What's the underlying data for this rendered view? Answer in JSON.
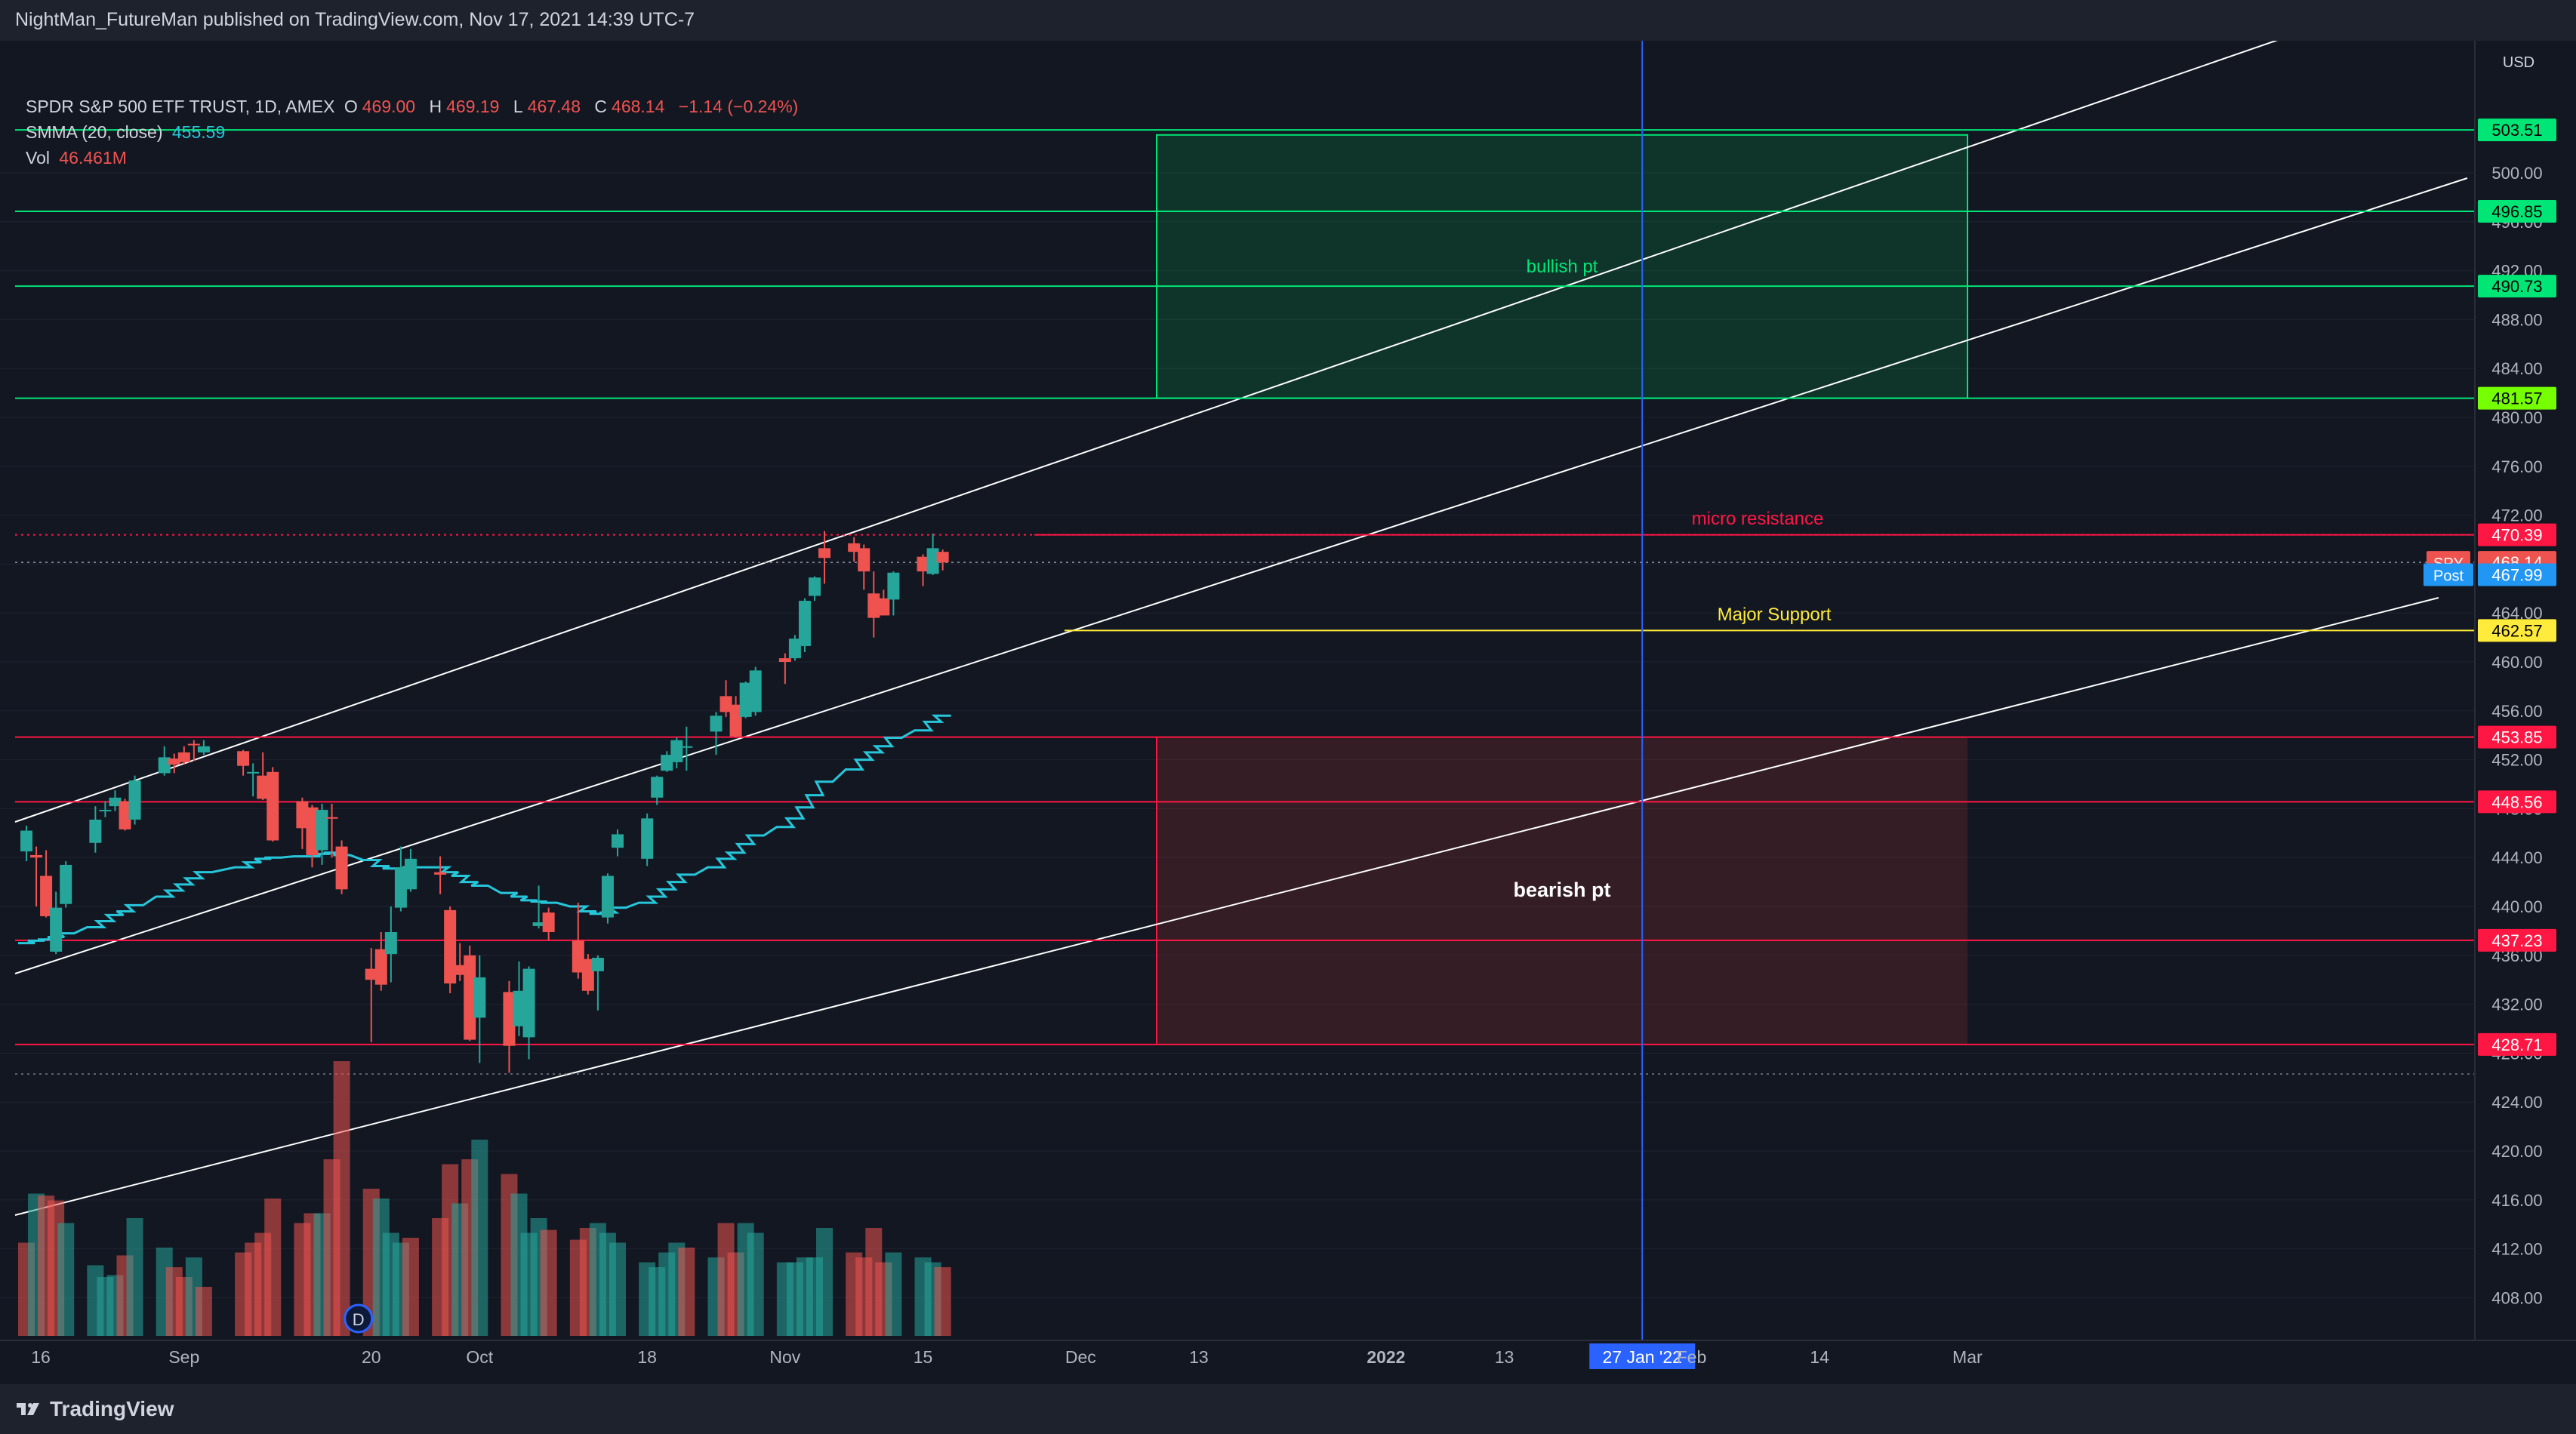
{
  "header": {
    "publish_text": "NightMan_FutureMan published on TradingView.com, Nov 17, 2021 14:39 UTC-7"
  },
  "legend": {
    "symbol": "SPDR S&P 500 ETF TRUST, 1D, AMEX",
    "open_label": "O",
    "open": "469.00",
    "high_label": "H",
    "high": "469.19",
    "low_label": "L",
    "low": "467.48",
    "close_label": "C",
    "close": "468.14",
    "change": "−1.14 (−0.24%)",
    "smma_label": "SMMA (20, close)",
    "smma_value": "455.59",
    "vol_label": "Vol",
    "vol_value": "46.461M"
  },
  "footer": {
    "brand": "TradingView"
  },
  "colors": {
    "background": "#131722",
    "up": "#26a69a",
    "down": "#ef5350",
    "smma": "#26c6da",
    "resistance_green": "#00e676",
    "support_yellow": "#ffeb3b",
    "level_red": "#ff1744",
    "channel": "#ffffff",
    "vline": "#2962ff"
  },
  "chart_data": {
    "type": "candlestick",
    "symbol": "SPY",
    "timeframe": "1D",
    "y_axis": {
      "currency": "USD",
      "ticks": [
        "500.00",
        "496.00",
        "492.00",
        "488.00",
        "484.00",
        "480.00",
        "476.00",
        "472.00",
        "468.00",
        "464.00",
        "460.00",
        "456.00",
        "452.00",
        "448.00",
        "444.00",
        "440.00",
        "436.00",
        "432.00",
        "428.00",
        "424.00",
        "420.00",
        "416.00",
        "412.00",
        "408.00"
      ],
      "range": [
        404,
        508
      ]
    },
    "x_axis": {
      "labels": [
        "16",
        "Sep",
        "20",
        "Oct",
        "18",
        "Nov",
        "15",
        "Dec",
        "13",
        "2022",
        "13",
        "27 Jan '22",
        "Feb",
        "14",
        "Mar"
      ],
      "highlighted_label": "27 Jan '22"
    },
    "candles": [
      {
        "d": "2021-08-16",
        "o": 444.5,
        "h": 446.6,
        "l": 443.7,
        "c": 446.2
      },
      {
        "d": "2021-08-17",
        "o": 444.2,
        "h": 444.9,
        "l": 440.0,
        "c": 444.0
      },
      {
        "d": "2021-08-18",
        "o": 442.5,
        "h": 444.6,
        "l": 439.1,
        "c": 439.2
      },
      {
        "d": "2021-08-19",
        "o": 436.3,
        "h": 441.2,
        "l": 436.1,
        "c": 439.9
      },
      {
        "d": "2021-08-20",
        "o": 440.2,
        "h": 443.7,
        "l": 439.9,
        "c": 443.4
      },
      {
        "d": "2021-08-23",
        "o": 445.2,
        "h": 448.2,
        "l": 444.4,
        "c": 447.1
      },
      {
        "d": "2021-08-24",
        "o": 447.9,
        "h": 448.6,
        "l": 447.3,
        "c": 447.9
      },
      {
        "d": "2021-08-25",
        "o": 448.2,
        "h": 449.5,
        "l": 447.8,
        "c": 448.9
      },
      {
        "d": "2021-08-26",
        "o": 448.6,
        "h": 448.8,
        "l": 446.2,
        "c": 446.3
      },
      {
        "d": "2021-08-27",
        "o": 447.1,
        "h": 450.7,
        "l": 446.7,
        "c": 450.3
      },
      {
        "d": "2021-08-30",
        "o": 450.9,
        "h": 453.1,
        "l": 450.7,
        "c": 452.2
      },
      {
        "d": "2021-08-31",
        "o": 452.1,
        "h": 452.5,
        "l": 450.9,
        "c": 451.6
      },
      {
        "d": "2021-09-01",
        "o": 452.6,
        "h": 453.1,
        "l": 451.6,
        "c": 451.8
      },
      {
        "d": "2021-09-02",
        "o": 453.3,
        "h": 453.6,
        "l": 451.9,
        "c": 453.2
      },
      {
        "d": "2021-09-03",
        "o": 452.6,
        "h": 453.6,
        "l": 452.4,
        "c": 453.1
      },
      {
        "d": "2021-09-07",
        "o": 452.7,
        "h": 452.8,
        "l": 450.7,
        "c": 451.5
      },
      {
        "d": "2021-09-08",
        "o": 450.9,
        "h": 451.7,
        "l": 449.0,
        "c": 451.0
      },
      {
        "d": "2021-09-09",
        "o": 450.7,
        "h": 452.6,
        "l": 448.7,
        "c": 448.8
      },
      {
        "d": "2021-09-10",
        "o": 451.0,
        "h": 451.4,
        "l": 445.3,
        "c": 445.4
      },
      {
        "d": "2021-09-13",
        "o": 448.6,
        "h": 448.9,
        "l": 444.7,
        "c": 446.4
      },
      {
        "d": "2021-09-14",
        "o": 448.1,
        "h": 448.3,
        "l": 443.2,
        "c": 444.2
      },
      {
        "d": "2021-09-15",
        "o": 444.6,
        "h": 448.4,
        "l": 443.4,
        "c": 447.9
      },
      {
        "d": "2021-09-16",
        "o": 447.3,
        "h": 448.4,
        "l": 444.0,
        "c": 447.2
      },
      {
        "d": "2021-09-17",
        "o": 444.9,
        "h": 445.4,
        "l": 441.0,
        "c": 441.4
      },
      {
        "d": "2021-09-20",
        "o": 434.9,
        "h": 436.6,
        "l": 428.9,
        "c": 434.0
      },
      {
        "d": "2021-09-21",
        "o": 436.5,
        "h": 437.9,
        "l": 433.1,
        "c": 433.6
      },
      {
        "d": "2021-09-22",
        "o": 436.1,
        "h": 440.0,
        "l": 433.8,
        "c": 437.9
      },
      {
        "d": "2021-09-23",
        "o": 439.9,
        "h": 444.9,
        "l": 439.6,
        "c": 443.2
      },
      {
        "d": "2021-09-24",
        "o": 441.4,
        "h": 444.7,
        "l": 441.2,
        "c": 443.9
      },
      {
        "d": "2021-09-27",
        "o": 442.8,
        "h": 444.1,
        "l": 441.0,
        "c": 442.6
      },
      {
        "d": "2021-09-28",
        "o": 439.7,
        "h": 440.0,
        "l": 432.9,
        "c": 433.7
      },
      {
        "d": "2021-09-29",
        "o": 435.2,
        "h": 437.0,
        "l": 433.9,
        "c": 434.4
      },
      {
        "d": "2021-09-30",
        "o": 436.0,
        "h": 436.8,
        "l": 429.0,
        "c": 429.1
      },
      {
        "d": "2021-10-01",
        "o": 430.9,
        "h": 436.0,
        "l": 427.2,
        "c": 434.2
      },
      {
        "d": "2021-10-04",
        "o": 433.0,
        "h": 433.9,
        "l": 426.4,
        "c": 428.6
      },
      {
        "d": "2021-10-05",
        "o": 430.2,
        "h": 435.5,
        "l": 429.4,
        "c": 433.1
      },
      {
        "d": "2021-10-06",
        "o": 429.3,
        "h": 435.1,
        "l": 427.5,
        "c": 434.9
      },
      {
        "d": "2021-10-07",
        "o": 438.4,
        "h": 441.7,
        "l": 438.2,
        "c": 438.7
      },
      {
        "d": "2021-10-08",
        "o": 439.5,
        "h": 439.9,
        "l": 437.2,
        "c": 437.9
      },
      {
        "d": "2021-10-11",
        "o": 437.2,
        "h": 440.3,
        "l": 434.1,
        "c": 434.6
      },
      {
        "d": "2021-10-12",
        "o": 435.7,
        "h": 436.1,
        "l": 432.8,
        "c": 433.1
      },
      {
        "d": "2021-10-13",
        "o": 434.7,
        "h": 436.0,
        "l": 431.5,
        "c": 435.8
      },
      {
        "d": "2021-10-14",
        "o": 439.1,
        "h": 442.7,
        "l": 438.6,
        "c": 442.5
      },
      {
        "d": "2021-10-15",
        "o": 444.8,
        "h": 446.3,
        "l": 444.1,
        "c": 445.9
      },
      {
        "d": "2021-10-18",
        "o": 443.9,
        "h": 447.6,
        "l": 443.3,
        "c": 447.2
      },
      {
        "d": "2021-10-19",
        "o": 448.9,
        "h": 450.7,
        "l": 448.3,
        "c": 450.6
      },
      {
        "d": "2021-10-20",
        "o": 451.1,
        "h": 452.7,
        "l": 451.0,
        "c": 452.4
      },
      {
        "d": "2021-10-21",
        "o": 451.8,
        "h": 453.8,
        "l": 451.3,
        "c": 453.6
      },
      {
        "d": "2021-10-22",
        "o": 453.1,
        "h": 454.7,
        "l": 451.1,
        "c": 453.1
      },
      {
        "d": "2021-10-25",
        "o": 454.3,
        "h": 455.9,
        "l": 452.4,
        "c": 455.6
      },
      {
        "d": "2021-10-26",
        "o": 457.2,
        "h": 458.5,
        "l": 455.5,
        "c": 455.9
      },
      {
        "d": "2021-10-27",
        "o": 456.5,
        "h": 457.2,
        "l": 453.8,
        "c": 453.9
      },
      {
        "d": "2021-10-28",
        "o": 455.5,
        "h": 458.4,
        "l": 455.4,
        "c": 458.3
      },
      {
        "d": "2021-10-29",
        "o": 455.9,
        "h": 459.6,
        "l": 455.6,
        "c": 459.3
      },
      {
        "d": "2021-11-01",
        "o": 460.3,
        "h": 460.7,
        "l": 458.2,
        "c": 460.0
      },
      {
        "d": "2021-11-02",
        "o": 460.3,
        "h": 462.2,
        "l": 460.1,
        "c": 461.9
      },
      {
        "d": "2021-11-03",
        "o": 461.3,
        "h": 465.2,
        "l": 460.8,
        "c": 465.0
      },
      {
        "d": "2021-11-04",
        "o": 465.4,
        "h": 467.0,
        "l": 464.99,
        "c": 466.9
      },
      {
        "d": "2021-11-05",
        "o": 469.3,
        "h": 470.7,
        "l": 466.4,
        "c": 468.5
      },
      {
        "d": "2021-11-08",
        "o": 469.7,
        "h": 470.2,
        "l": 468.2,
        "c": 469.0
      },
      {
        "d": "2021-11-09",
        "o": 469.3,
        "h": 469.6,
        "l": 465.9,
        "c": 467.4
      },
      {
        "d": "2021-11-10",
        "o": 465.6,
        "h": 467.4,
        "l": 462.0,
        "c": 463.6
      },
      {
        "d": "2021-11-11",
        "o": 465.2,
        "h": 465.9,
        "l": 463.8,
        "c": 463.8
      },
      {
        "d": "2021-11-12",
        "o": 465.1,
        "h": 467.4,
        "l": 463.8,
        "c": 467.3
      },
      {
        "d": "2021-11-15",
        "o": 468.6,
        "h": 468.8,
        "l": 466.2,
        "c": 467.4
      },
      {
        "d": "2021-11-16",
        "o": 467.2,
        "h": 470.5,
        "l": 467.1,
        "c": 469.3
      },
      {
        "d": "2021-11-17",
        "o": 469.0,
        "h": 469.19,
        "l": 467.48,
        "c": 468.14
      }
    ],
    "volume": [
      95,
      145,
      143,
      138,
      115,
      72,
      60,
      62,
      82,
      120,
      90,
      70,
      60,
      80,
      50,
      85,
      95,
      105,
      140,
      115,
      125,
      125,
      180,
      280,
      150,
      140,
      105,
      95,
      100,
      120,
      175,
      135,
      180,
      200,
      165,
      145,
      105,
      120,
      108,
      98,
      110,
      115,
      105,
      95,
      75,
      70,
      85,
      95,
      90,
      80,
      115,
      85,
      115,
      105,
      75,
      75,
      80,
      80,
      110,
      85,
      80,
      110,
      75,
      85,
      80,
      75,
      70
    ],
    "volume_up": [
      false,
      true,
      false,
      false,
      true,
      true,
      true,
      true,
      false,
      true,
      true,
      false,
      false,
      true,
      false,
      false,
      false,
      false,
      false,
      false,
      false,
      true,
      false,
      false,
      false,
      true,
      true,
      true,
      false,
      false,
      false,
      true,
      false,
      true,
      false,
      true,
      true,
      true,
      false,
      false,
      false,
      true,
      true,
      true,
      true,
      true,
      true,
      true,
      false,
      true,
      false,
      false,
      true,
      true,
      true,
      true,
      true,
      true,
      true,
      false,
      false,
      false,
      false,
      true,
      true,
      true,
      false
    ],
    "smma": [
      437.0,
      437.2,
      437.3,
      437.5,
      437.8,
      438.3,
      438.8,
      439.3,
      439.6,
      440.1,
      440.8,
      441.3,
      441.8,
      442.3,
      442.8,
      443.2,
      443.6,
      443.9,
      444.0,
      444.1,
      444.1,
      444.3,
      444.4,
      444.2,
      443.8,
      443.3,
      443.1,
      443.1,
      443.2,
      443.2,
      442.8,
      442.5,
      442.0,
      441.7,
      441.1,
      440.8,
      440.5,
      440.4,
      440.3,
      440.0,
      439.6,
      439.4,
      439.5,
      439.9,
      440.3,
      440.8,
      441.4,
      442.0,
      442.6,
      443.2,
      443.9,
      444.4,
      445.1,
      445.8,
      446.5,
      447.2,
      448.1,
      449.1,
      450.2,
      451.2,
      452.0,
      452.6,
      453.1,
      453.8,
      454.4,
      455.1,
      455.6
    ],
    "last_price": 468.14,
    "post_price": 467.99,
    "levels": [
      {
        "price": 503.51,
        "color": "green",
        "label": "503.51"
      },
      {
        "price": 496.85,
        "color": "green",
        "label": "496.85"
      },
      {
        "price": 490.73,
        "color": "green",
        "label": "490.73"
      },
      {
        "price": 481.57,
        "color": "green",
        "label": "481.57"
      },
      {
        "price": 470.39,
        "color": "red_dotted",
        "label": "470.39"
      },
      {
        "price": 462.57,
        "color": "yellow",
        "label": "462.57"
      },
      {
        "price": 453.85,
        "color": "red",
        "label": "453.85"
      },
      {
        "price": 448.56,
        "color": "red",
        "label": "448.56"
      },
      {
        "price": 437.23,
        "color": "red",
        "label": "437.23"
      },
      {
        "price": 428.71,
        "color": "red",
        "label": "428.71"
      }
    ],
    "price_tags": {
      "spy_label": "SPY",
      "spy_value": "468.14",
      "post_label": "Post",
      "post_value": "467.99"
    },
    "annotations": {
      "bullish": "bullish pt",
      "bearish": "bearish pt",
      "micro_resistance": "micro resistance",
      "major_support": "Major Support"
    },
    "vertical_marker_date": "2022-01-27",
    "event_marker": "D"
  }
}
